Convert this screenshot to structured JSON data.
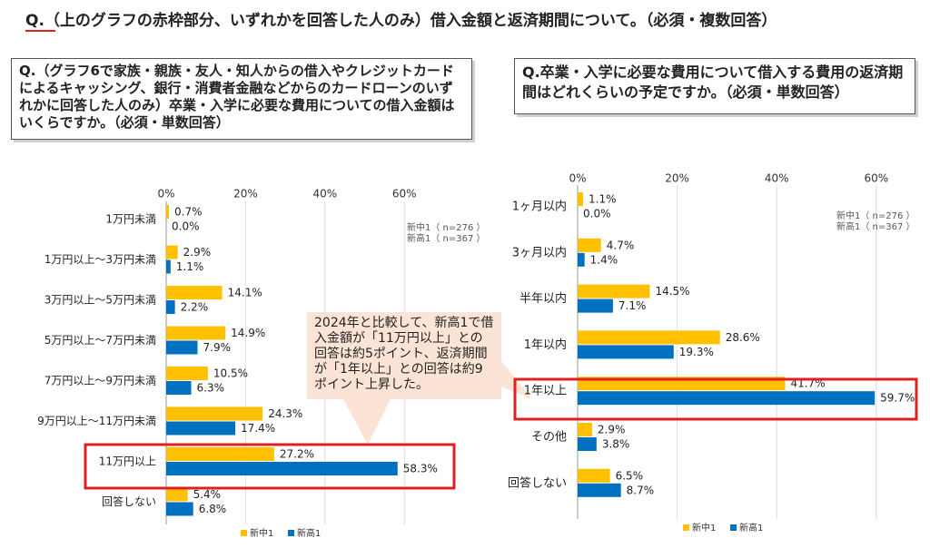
{
  "title": "Q.（上のグラフの赤枠部分、いずれかを回答した人のみ）借入金額と返済期間について。（必須・複数回答）",
  "left_question": "Q.（グラフ6で家族・親族・友人・知人からの借入やクレジットカードによるキャッシング、銀行・消費者金融などからのカードローンのいずれかに回答した人のみ）卒業・入学に必要な費用についての借入金額はいくらですか。（必須・単数回答）",
  "right_question": "Q.卒業・入学に必要な費用について借入する費用の返済期間はどれくらいの予定ですか。（必須・単数回答）",
  "callout": "2024年と比較して、新高1で借入金額が「11万円以上」との回答は約5ポイント、返済期間が「1年以上」との回答は約9ポイント上昇した。",
  "colors": {
    "series1": "#ffc000",
    "series2": "#0070c0",
    "highlight": "#e02020"
  },
  "chart_data": [
    {
      "type": "bar",
      "orientation": "horizontal",
      "categories": [
        "1万円未満",
        "1万円以上～3万円未満",
        "3万円以上～5万円未満",
        "5万円以上～7万円未満",
        "7万円以上～9万円未満",
        "9万円以上～11万円未満",
        "11万円以上",
        "回答しない"
      ],
      "series": [
        {
          "name": "新中1",
          "values": [
            0.7,
            2.9,
            14.1,
            14.9,
            10.5,
            24.3,
            27.2,
            5.4
          ]
        },
        {
          "name": "新高1",
          "values": [
            0.0,
            1.1,
            2.2,
            7.9,
            6.3,
            17.4,
            58.3,
            6.8
          ]
        }
      ],
      "ticks": [
        "0%",
        "20%",
        "40%",
        "60%"
      ],
      "xlim": [
        0,
        60
      ],
      "legend": [
        "新中1",
        "新高1"
      ],
      "sample_notes": [
        "新中1（ n=276 ）",
        "新高1（ n=367 ）"
      ],
      "highlight_category": "11万円以上"
    },
    {
      "type": "bar",
      "orientation": "horizontal",
      "categories": [
        "1ヶ月以内",
        "3ヶ月以内",
        "半年以内",
        "1年以内",
        "1年以上",
        "その他",
        "回答しない"
      ],
      "series": [
        {
          "name": "新中1",
          "values": [
            1.1,
            4.7,
            14.5,
            28.6,
            41.7,
            2.9,
            6.5
          ]
        },
        {
          "name": "新高1",
          "values": [
            0.0,
            1.4,
            7.1,
            19.3,
            59.7,
            3.8,
            8.7
          ]
        }
      ],
      "ticks": [
        "0%",
        "20%",
        "40%",
        "60%"
      ],
      "xlim": [
        0,
        60
      ],
      "legend": [
        "新中1",
        "新高1"
      ],
      "sample_notes": [
        "新中1（ n=276 ）",
        "新高1（ n=367 ）"
      ],
      "highlight_category": "1年以上"
    }
  ]
}
